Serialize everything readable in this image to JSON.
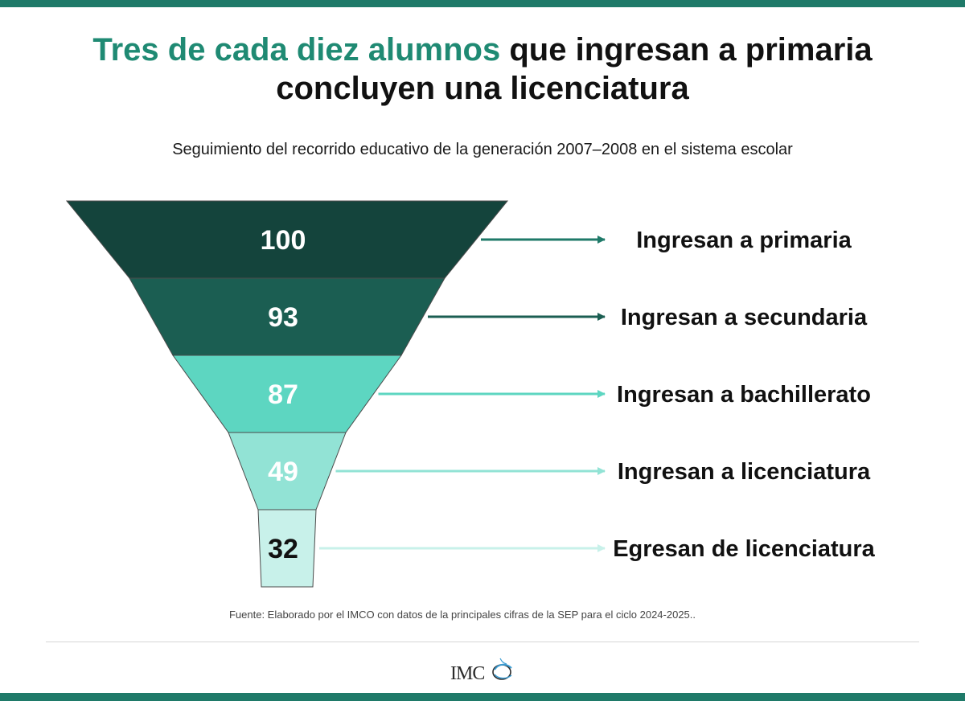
{
  "header": {
    "title_accent": "Tres de cada diez alumnos",
    "title_rest_line1": " que ingresan a primaria",
    "title_line2": "concluyen una licenciatura",
    "subtitle": "Seguimiento del recorrido educativo de la generación 2007–2008 en el sistema escolar"
  },
  "colors": {
    "accent": "#1f8a73",
    "bar": "#1f7a69"
  },
  "chart_data": {
    "type": "funnel",
    "stages": [
      {
        "value": 100,
        "value_label": "100",
        "label": "Ingresan a primaria",
        "color": "#14443c",
        "text_color": "#ffffff"
      },
      {
        "value": 93,
        "value_label": "93",
        "label": "Ingresan a secundaria",
        "color": "#1b5e52",
        "text_color": "#ffffff"
      },
      {
        "value": 87,
        "value_label": "87",
        "label": "Ingresan a bachillerato",
        "color": "#5dd6c1",
        "text_color": "#ffffff"
      },
      {
        "value": 49,
        "value_label": "49",
        "label": "Ingresan a licenciatura",
        "color": "#92e3d5",
        "text_color": "#ffffff"
      },
      {
        "value": 32,
        "value_label": "32",
        "label": "Egresan de licenciatura",
        "color": "#c8f1ea",
        "text_color": "#111111"
      }
    ]
  },
  "footer": {
    "source": "Fuente: Elaborado por el IMCO con datos de la principales cifras de la SEP para el ciclo 2024-2025..",
    "logo_text": "IMCO"
  }
}
